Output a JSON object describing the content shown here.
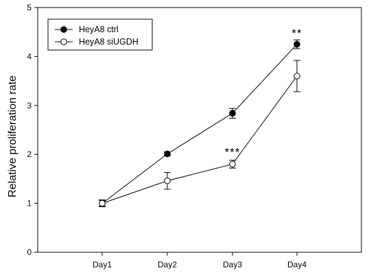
{
  "chart_data": {
    "type": "line",
    "categories": [
      "Day1",
      "Day2",
      "Day3",
      "Day4"
    ],
    "ylabel": "Relative proliferation rate",
    "xlabel": "",
    "ylim": [
      0,
      5
    ],
    "yticks": [
      0,
      1,
      2,
      3,
      4,
      5
    ],
    "grid": false,
    "legend_position": "top-left",
    "series": [
      {
        "name": "HeyA8 ctrl",
        "marker": "filled-circle",
        "color": "#000000",
        "values": [
          1.0,
          2.01,
          2.84,
          4.25
        ],
        "errors": [
          0.06,
          0.04,
          0.1,
          0.09
        ]
      },
      {
        "name": "HeyA8 siUGDH",
        "marker": "open-circle",
        "color": "#000000",
        "values": [
          1.0,
          1.46,
          1.8,
          3.6
        ],
        "errors": [
          0.07,
          0.17,
          0.08,
          0.32
        ]
      }
    ],
    "annotations": [
      {
        "text": "***",
        "category": "Day3",
        "y": 2.05
      },
      {
        "text": "**",
        "category": "Day4",
        "y": 4.48
      }
    ]
  }
}
